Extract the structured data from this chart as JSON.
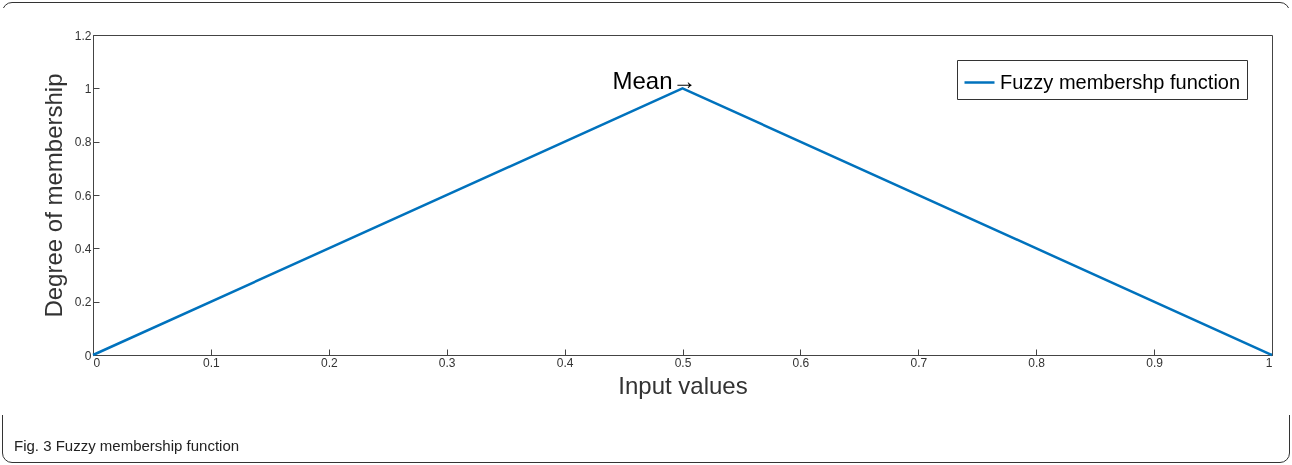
{
  "chart_data": {
    "type": "line",
    "xlabel": "Input values",
    "ylabel": "Degree of membership",
    "x": [
      0,
      0.5,
      1
    ],
    "series": [
      {
        "name": "Fuzzy membershp function",
        "color": "#0072bd",
        "values": [
          0,
          1,
          0
        ]
      }
    ],
    "xlim": [
      0,
      1
    ],
    "xticks": [
      0,
      0.1,
      0.2,
      0.3,
      0.4,
      0.5,
      0.6,
      0.7,
      0.8,
      0.9,
      1
    ],
    "ylim": [
      0,
      1.2
    ],
    "yticks": [
      0,
      0.2,
      0.4,
      0.6,
      0.8,
      1,
      1.2
    ],
    "grid": false,
    "legend": "top right",
    "marker": "none",
    "line_style": "solid",
    "annotations": [
      {
        "text": "Mean→",
        "x": 0.5,
        "y": 1
      },
      "Fig. 3 Fuzzy membership function"
    ]
  }
}
